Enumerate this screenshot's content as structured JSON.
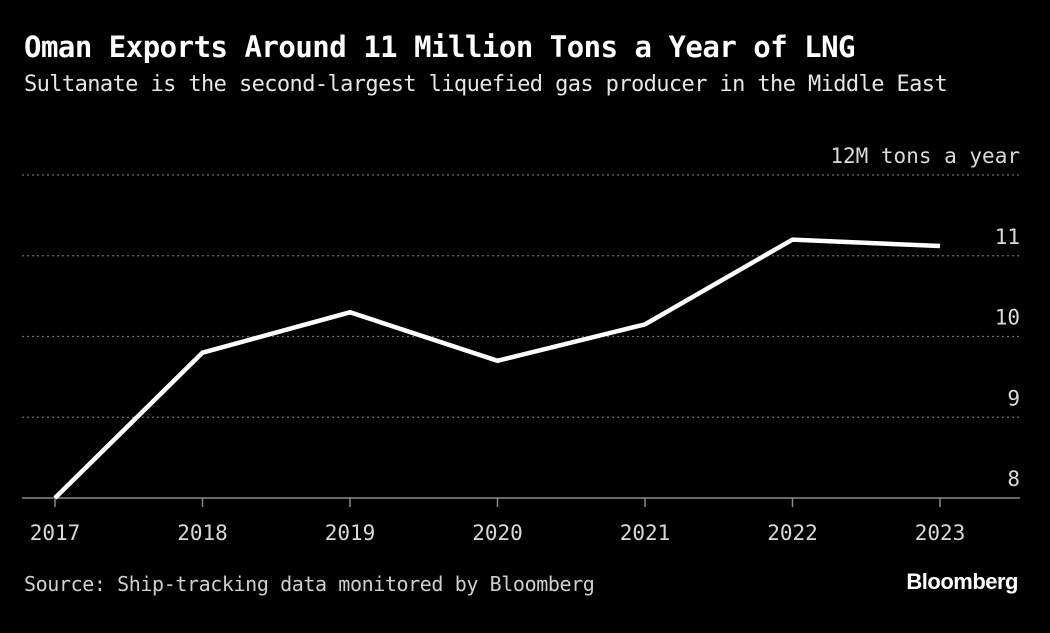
{
  "header": {
    "title": "Oman Exports Around 11 Million Tons a Year of LNG",
    "subtitle": "Sultanate is the second-largest liquefied gas producer in the Middle East"
  },
  "footer": {
    "source": "Source: Ship-tracking data monitored by Bloomberg",
    "brand": "Bloomberg"
  },
  "chart_data": {
    "type": "line",
    "title": "Oman Exports Around 11 Million Tons a Year of LNG",
    "subtitle": "Sultanate is the second-largest liquefied gas producer in the Middle East",
    "x": [
      "2017",
      "2018",
      "2019",
      "2020",
      "2021",
      "2022",
      "2023"
    ],
    "series": [
      {
        "values": [
          8.0,
          9.8,
          10.3,
          9.7,
          10.15,
          11.2,
          11.12
        ]
      }
    ],
    "y_ticks": [
      8,
      9,
      10,
      11,
      12
    ],
    "y_tick_labels": [
      "8",
      "9",
      "10",
      "11",
      "12M tons a year"
    ],
    "ylim": [
      8,
      12
    ],
    "y_axis_position": "right",
    "grid": "horizontal dotted",
    "line_color": "#ffffff",
    "grid_color": "#6e6e6e",
    "axis_color": "#8a8a8a"
  }
}
